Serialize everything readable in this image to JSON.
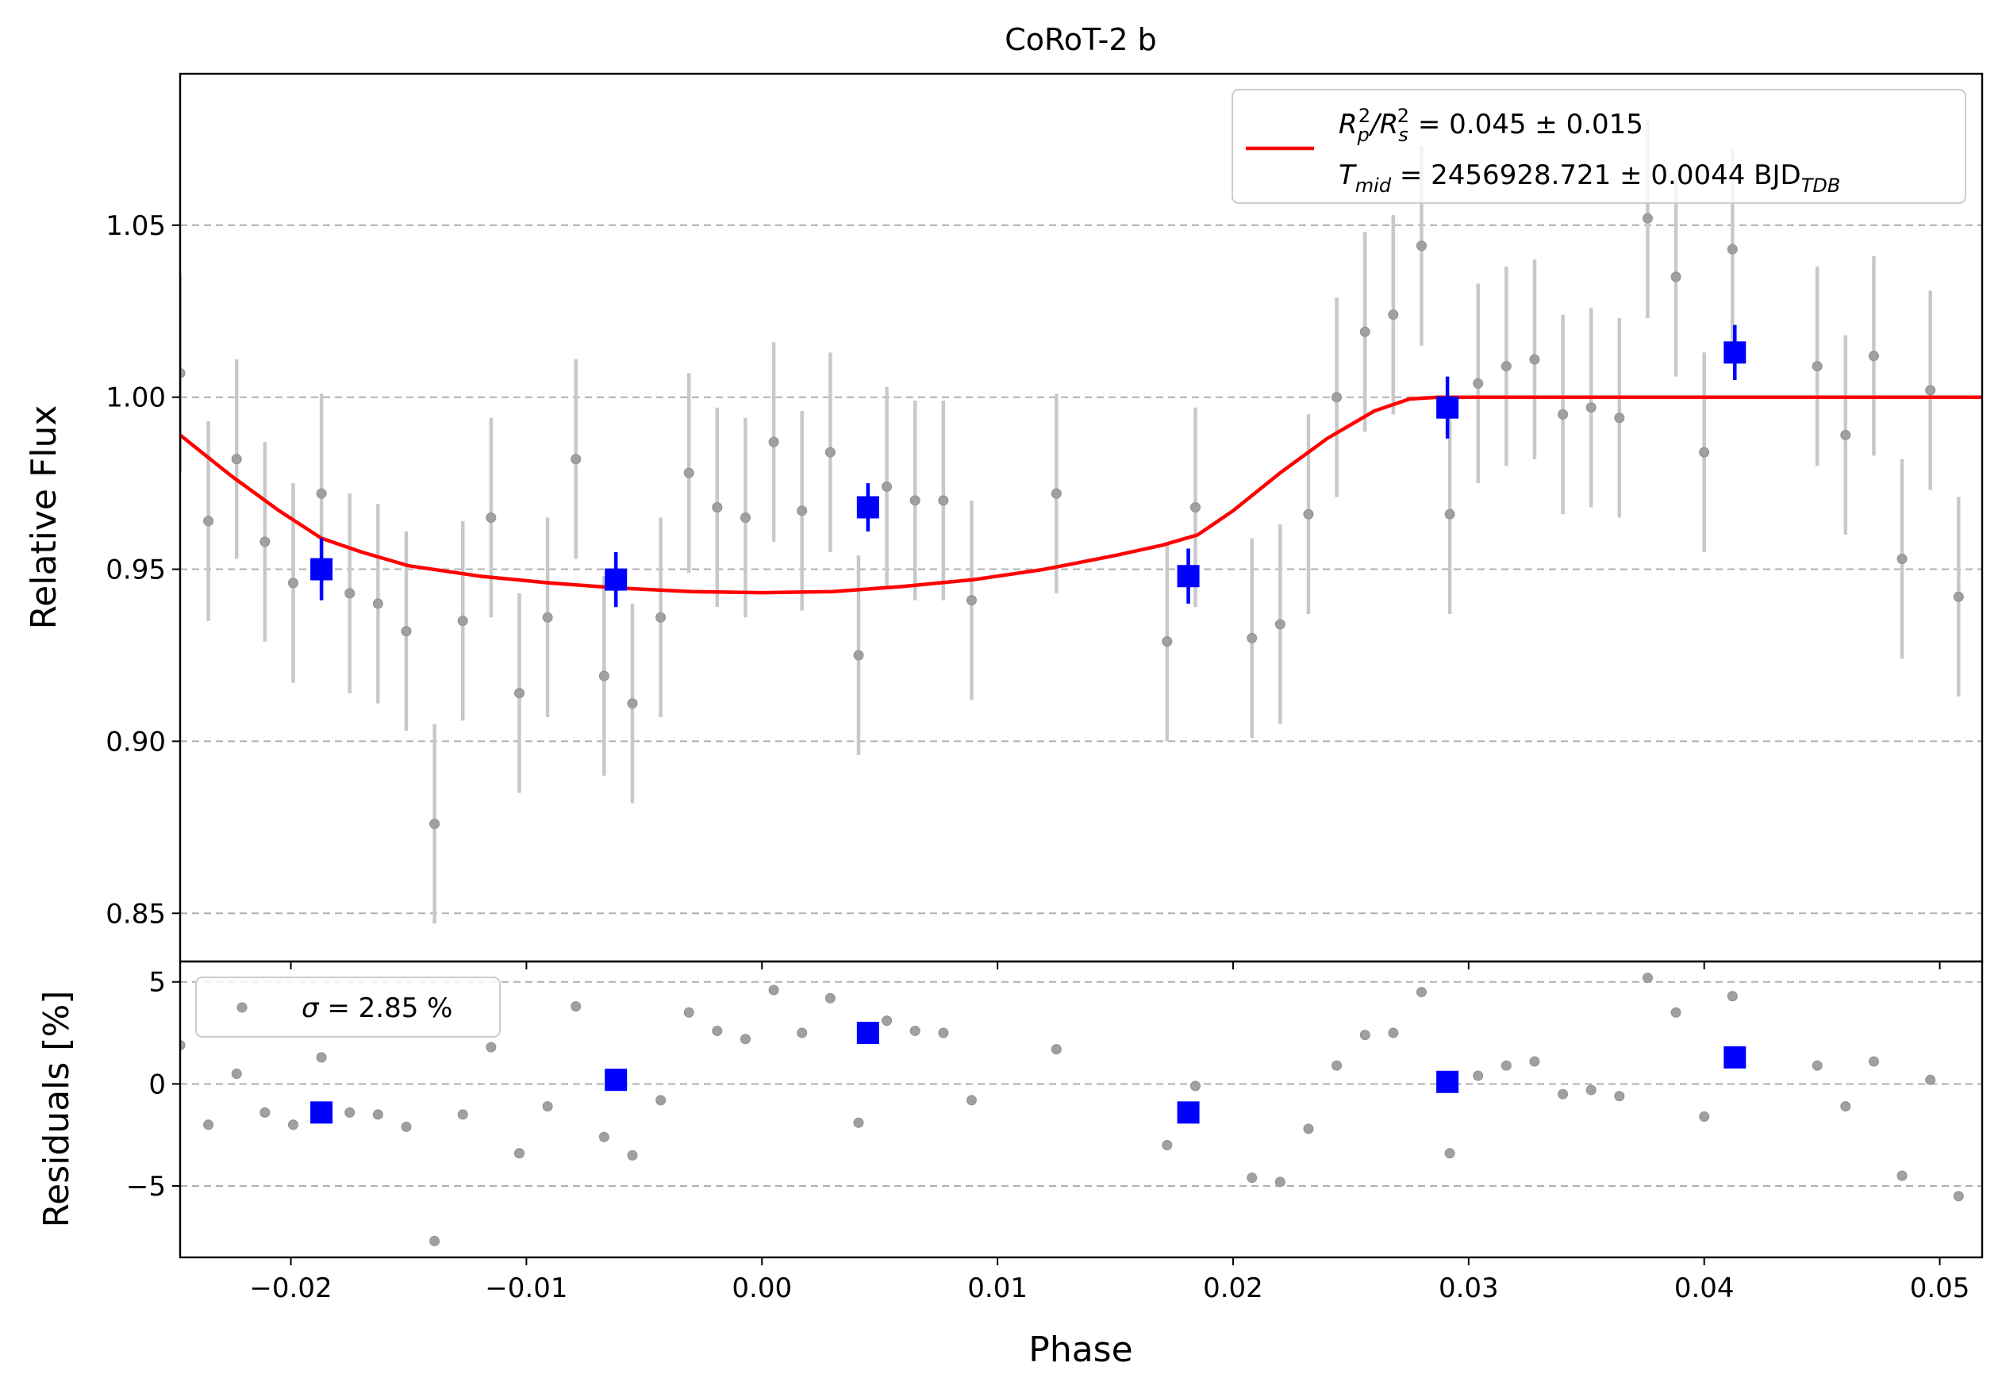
{
  "chart_data": [
    {
      "type": "scatter",
      "panel": "main",
      "title": "CoRoT-2 b",
      "xlabel": "",
      "ylabel": "Relative Flux",
      "xlim": [
        -0.0247,
        0.0518
      ],
      "ylim": [
        0.836,
        1.094
      ],
      "yticks": [
        0.85,
        0.9,
        0.95,
        1.0,
        1.05
      ],
      "ytick_labels": [
        "0.85",
        "0.90",
        "0.95",
        "1.00",
        "1.05"
      ],
      "grid": "y-dashed",
      "legend_position": "top-right",
      "legend": {
        "line1_parts": [
          "R",
          "p",
          "2",
          "/R",
          "s",
          "2",
          " = 0.045 ± 0.015"
        ],
        "line2_parts": [
          "T",
          "mid",
          " = 2456928.721 ± 0.0044 BJD",
          "TDB"
        ]
      },
      "colors": {
        "raw": "#a0a0a0",
        "error": "#c8c8c8",
        "binned": "#0000ff",
        "model": "#ff0000"
      },
      "raw": {
        "x": [
          -0.0247,
          -0.0235,
          -0.0223,
          -0.0211,
          -0.0199,
          -0.0187,
          -0.0175,
          -0.0163,
          -0.0151,
          -0.0139,
          -0.0127,
          -0.0115,
          -0.0103,
          -0.0091,
          -0.0079,
          -0.0067,
          -0.0055,
          -0.0043,
          -0.0031,
          -0.0019,
          -0.0007,
          0.0005,
          0.0017,
          0.0029,
          0.0041,
          0.0053,
          0.0065,
          0.0077,
          0.0089,
          0.0125,
          0.0172,
          0.0184,
          0.0208,
          0.022,
          0.0232,
          0.0244,
          0.0256,
          0.0268,
          0.028,
          0.0292,
          0.0304,
          0.0316,
          0.0328,
          0.034,
          0.0352,
          0.0364,
          0.0376,
          0.0388,
          0.04,
          0.0412,
          0.0448,
          0.046,
          0.0472,
          0.0484,
          0.0496,
          0.0508,
          0.052
        ],
        "y": [
          1.007,
          0.964,
          0.982,
          0.958,
          0.946,
          0.972,
          0.943,
          0.94,
          0.932,
          0.876,
          0.935,
          0.965,
          0.914,
          0.936,
          0.982,
          0.919,
          0.911,
          0.936,
          0.978,
          0.968,
          0.965,
          0.987,
          0.967,
          0.984,
          0.925,
          0.974,
          0.97,
          0.97,
          0.941,
          0.972,
          0.929,
          0.968,
          0.93,
          0.934,
          0.966,
          1.0,
          1.019,
          1.024,
          1.044,
          0.966,
          1.004,
          1.009,
          1.011,
          0.995,
          0.997,
          0.994,
          1.052,
          1.035,
          0.984,
          1.043,
          1.009,
          0.989,
          1.012,
          0.953,
          1.002,
          0.942,
          0.942
        ],
        "err": 0.029
      },
      "binned": {
        "x": [
          -0.0187,
          -0.0062,
          0.0045,
          0.0181,
          0.0291,
          0.0413
        ],
        "y": [
          0.95,
          0.947,
          0.968,
          0.948,
          0.997,
          1.013
        ],
        "err": [
          0.009,
          0.008,
          0.007,
          0.008,
          0.009,
          0.008
        ]
      },
      "model": {
        "x": [
          -0.0247,
          -0.0225,
          -0.0205,
          -0.0187,
          -0.017,
          -0.015,
          -0.012,
          -0.009,
          -0.006,
          -0.003,
          0.0,
          0.003,
          0.006,
          0.009,
          0.012,
          0.015,
          0.017,
          0.0185,
          0.02,
          0.022,
          0.024,
          0.026,
          0.0275,
          0.0287,
          0.03,
          0.035,
          0.04,
          0.045,
          0.0518
        ],
        "y": [
          0.989,
          0.977,
          0.967,
          0.959,
          0.955,
          0.951,
          0.948,
          0.946,
          0.9445,
          0.9435,
          0.9432,
          0.9435,
          0.945,
          0.947,
          0.95,
          0.954,
          0.957,
          0.96,
          0.967,
          0.978,
          0.988,
          0.996,
          0.9995,
          1.0,
          1.0,
          1.0,
          1.0,
          1.0,
          1.0
        ]
      }
    },
    {
      "type": "scatter",
      "panel": "residuals",
      "xlabel": "Phase",
      "ylabel": "Residuals [%]",
      "xlim": [
        -0.0247,
        0.0518
      ],
      "ylim": [
        -8.5,
        6.0
      ],
      "xticks": [
        -0.02,
        -0.01,
        0.0,
        0.01,
        0.02,
        0.03,
        0.04,
        0.05
      ],
      "xtick_labels": [
        "−0.02",
        "−0.01",
        "0.00",
        "0.01",
        "0.02",
        "0.03",
        "0.04",
        "0.05"
      ],
      "yticks": [
        5,
        0,
        -5
      ],
      "ytick_labels": [
        "5",
        "0",
        "−5"
      ],
      "grid": "y-dashed",
      "legend_position": "top-left",
      "legend": {
        "label_parts": [
          "σ",
          " = 2.85 %"
        ]
      },
      "raw": {
        "x": [
          -0.0247,
          -0.0235,
          -0.0223,
          -0.0211,
          -0.0199,
          -0.0187,
          -0.0175,
          -0.0163,
          -0.0151,
          -0.0139,
          -0.0127,
          -0.0115,
          -0.0103,
          -0.0091,
          -0.0079,
          -0.0067,
          -0.0055,
          -0.0043,
          -0.0031,
          -0.0019,
          -0.0007,
          0.0005,
          0.0017,
          0.0029,
          0.0041,
          0.0053,
          0.0065,
          0.0077,
          0.0089,
          0.0125,
          0.0172,
          0.0184,
          0.0208,
          0.022,
          0.0232,
          0.0244,
          0.0256,
          0.0268,
          0.028,
          0.0292,
          0.0304,
          0.0316,
          0.0328,
          0.034,
          0.0352,
          0.0364,
          0.0376,
          0.0388,
          0.04,
          0.0412,
          0.0448,
          0.046,
          0.0472,
          0.0484,
          0.0496,
          0.0508,
          0.052
        ],
        "y": [
          1.9,
          -2.0,
          0.5,
          -1.4,
          -2.0,
          1.3,
          -1.4,
          -1.5,
          -2.1,
          -7.7,
          -1.5,
          1.8,
          -3.4,
          -1.1,
          3.8,
          -2.6,
          -3.5,
          -0.8,
          3.5,
          2.6,
          2.2,
          4.6,
          2.5,
          4.2,
          -1.9,
          3.1,
          2.6,
          2.5,
          -0.8,
          1.7,
          -3.0,
          -0.1,
          -4.6,
          -4.8,
          -2.2,
          0.9,
          2.4,
          2.5,
          4.5,
          -3.4,
          0.4,
          0.9,
          1.1,
          -0.5,
          -0.3,
          -0.6,
          5.2,
          3.5,
          -1.6,
          4.3,
          0.9,
          -1.1,
          1.1,
          -4.5,
          0.2,
          -5.5,
          -5.5
        ]
      },
      "binned": {
        "x": [
          -0.0187,
          -0.0062,
          0.0045,
          0.0181,
          0.0291,
          0.0413
        ],
        "y": [
          -1.4,
          0.2,
          2.5,
          -1.4,
          0.1,
          1.3
        ]
      }
    }
  ]
}
